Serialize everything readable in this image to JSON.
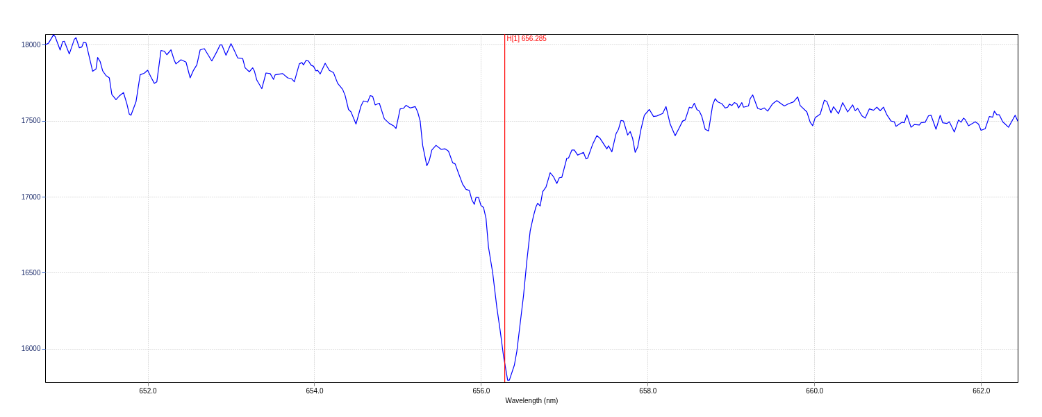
{
  "chart_data": {
    "type": "line",
    "xlabel": "Wavelength (nm)",
    "xlim": [
      650.77,
      662.44
    ],
    "ylim": [
      15780,
      18070
    ],
    "xticks": [
      {
        "value": 652,
        "label": "652.0"
      },
      {
        "value": 654,
        "label": "654.0"
      },
      {
        "value": 656,
        "label": "656.0"
      },
      {
        "value": 658,
        "label": "658.0"
      },
      {
        "value": 660,
        "label": "660.0"
      },
      {
        "value": 662,
        "label": "662.0"
      }
    ],
    "yticks": [
      16000,
      16500,
      17000,
      17500,
      18000
    ],
    "grid": true,
    "line_style": "solid",
    "ref_lines": [
      {
        "axis": "x",
        "value": 656.285,
        "label": "H[1] 656.285",
        "color": "#ff0000"
      }
    ],
    "x": [
      650.77,
      650.81,
      650.87,
      650.89,
      650.95,
      650.98,
      651.0,
      651.06,
      651.12,
      651.14,
      651.18,
      651.21,
      651.23,
      651.26,
      651.34,
      651.38,
      651.4,
      651.43,
      651.46,
      651.5,
      651.54,
      651.57,
      651.62,
      651.66,
      651.71,
      651.75,
      651.78,
      651.8,
      651.86,
      651.91,
      651.96,
      652.0,
      652.04,
      652.08,
      652.11,
      652.16,
      652.2,
      652.23,
      652.28,
      652.32,
      652.34,
      652.4,
      652.46,
      652.51,
      652.55,
      652.59,
      652.63,
      652.68,
      652.77,
      652.83,
      652.87,
      652.89,
      652.94,
      653.0,
      653.04,
      653.08,
      653.14,
      653.17,
      653.22,
      653.26,
      653.28,
      653.31,
      653.37,
      653.42,
      653.47,
      653.51,
      653.53,
      653.62,
      653.68,
      653.73,
      653.76,
      653.82,
      653.85,
      653.87,
      653.9,
      653.93,
      653.96,
      653.99,
      654.02,
      654.04,
      654.07,
      654.13,
      654.18,
      654.23,
      654.28,
      654.34,
      654.37,
      654.41,
      654.44,
      654.5,
      654.56,
      654.59,
      654.64,
      654.67,
      654.7,
      654.73,
      654.78,
      654.84,
      654.9,
      654.95,
      654.98,
      655.03,
      655.07,
      655.1,
      655.15,
      655.21,
      655.24,
      655.27,
      655.3,
      655.35,
      655.38,
      655.41,
      655.46,
      655.52,
      655.57,
      655.61,
      655.66,
      655.69,
      655.73,
      655.78,
      655.82,
      655.86,
      655.89,
      655.92,
      655.94,
      655.97,
      656.0,
      656.03,
      656.06,
      656.09,
      656.14,
      656.19,
      656.23,
      656.27,
      656.32,
      656.34,
      656.4,
      656.43,
      656.47,
      656.51,
      656.55,
      656.59,
      656.63,
      656.66,
      656.68,
      656.71,
      656.74,
      656.78,
      656.83,
      656.87,
      656.91,
      656.94,
      656.97,
      657.03,
      657.05,
      657.09,
      657.12,
      657.16,
      657.23,
      657.26,
      657.28,
      657.34,
      657.39,
      657.43,
      657.51,
      657.53,
      657.57,
      657.62,
      657.65,
      657.68,
      657.71,
      657.76,
      657.79,
      657.82,
      657.85,
      657.88,
      657.92,
      657.96,
      658.02,
      658.07,
      658.11,
      658.18,
      658.22,
      658.27,
      658.33,
      658.37,
      658.42,
      658.45,
      658.5,
      658.53,
      658.56,
      658.59,
      658.62,
      658.65,
      658.69,
      658.73,
      658.78,
      658.81,
      658.84,
      658.89,
      658.93,
      658.96,
      658.98,
      659.01,
      659.04,
      659.07,
      659.09,
      659.13,
      659.15,
      659.21,
      659.23,
      659.26,
      659.32,
      659.36,
      659.4,
      659.44,
      659.5,
      659.55,
      659.64,
      659.69,
      659.75,
      659.8,
      659.83,
      659.91,
      659.95,
      659.98,
      660.01,
      660.07,
      660.12,
      660.15,
      660.2,
      660.23,
      660.29,
      660.34,
      660.4,
      660.46,
      660.49,
      660.52,
      660.57,
      660.61,
      660.66,
      660.71,
      660.75,
      660.79,
      660.83,
      660.87,
      660.92,
      660.96,
      660.98,
      661.05,
      661.08,
      661.11,
      661.16,
      661.2,
      661.26,
      661.28,
      661.33,
      661.37,
      661.4,
      661.46,
      661.51,
      661.54,
      661.59,
      661.62,
      661.68,
      661.73,
      661.76,
      661.79,
      661.81,
      661.85,
      661.93,
      661.97,
      662.0,
      662.05,
      662.1,
      662.14,
      662.16,
      662.19,
      662.22,
      662.26,
      662.29,
      662.33,
      662.41,
      662.44
    ],
    "series": [
      {
        "color": "#0000ff",
        "values": [
          17999,
          18010,
          18065,
          18053,
          17965,
          18020,
          18023,
          17939,
          18035,
          18046,
          17980,
          17985,
          18015,
          18012,
          17825,
          17840,
          17916,
          17889,
          17828,
          17797,
          17782,
          17673,
          17639,
          17663,
          17685,
          17612,
          17543,
          17536,
          17624,
          17802,
          17813,
          17832,
          17787,
          17746,
          17756,
          17962,
          17957,
          17934,
          17966,
          17896,
          17874,
          17901,
          17886,
          17782,
          17832,
          17867,
          17966,
          17974,
          17893,
          17954,
          17999,
          17999,
          17931,
          18007,
          17962,
          17913,
          17909,
          17848,
          17822,
          17848,
          17828,
          17767,
          17711,
          17814,
          17810,
          17772,
          17802,
          17810,
          17782,
          17775,
          17756,
          17874,
          17883,
          17867,
          17896,
          17893,
          17866,
          17858,
          17828,
          17832,
          17807,
          17878,
          17831,
          17816,
          17746,
          17706,
          17665,
          17574,
          17558,
          17478,
          17597,
          17630,
          17622,
          17665,
          17660,
          17604,
          17615,
          17513,
          17482,
          17467,
          17449,
          17578,
          17581,
          17601,
          17584,
          17593,
          17558,
          17498,
          17338,
          17204,
          17239,
          17307,
          17338,
          17312,
          17315,
          17300,
          17224,
          17216,
          17155,
          17082,
          17049,
          17041,
          16980,
          16950,
          16995,
          16995,
          16942,
          16930,
          16858,
          16668,
          16501,
          16272,
          16120,
          15953,
          15793,
          15793,
          15892,
          15983,
          16166,
          16349,
          16577,
          16775,
          16874,
          16934,
          16957,
          16939,
          17033,
          17064,
          17158,
          17132,
          17087,
          17125,
          17128,
          17254,
          17254,
          17307,
          17307,
          17274,
          17292,
          17249,
          17254,
          17345,
          17402,
          17383,
          17315,
          17335,
          17295,
          17414,
          17444,
          17502,
          17498,
          17406,
          17429,
          17383,
          17292,
          17326,
          17444,
          17536,
          17574,
          17528,
          17531,
          17548,
          17593,
          17478,
          17402,
          17444,
          17498,
          17505,
          17589,
          17584,
          17615,
          17574,
          17563,
          17528,
          17444,
          17432,
          17604,
          17645,
          17624,
          17612,
          17584,
          17589,
          17609,
          17600,
          17619,
          17612,
          17584,
          17619,
          17589,
          17597,
          17645,
          17670,
          17581,
          17574,
          17584,
          17563,
          17612,
          17632,
          17597,
          17612,
          17624,
          17657,
          17600,
          17558,
          17490,
          17467,
          17520,
          17543,
          17635,
          17627,
          17551,
          17592,
          17546,
          17619,
          17558,
          17604,
          17566,
          17581,
          17533,
          17517,
          17578,
          17569,
          17589,
          17566,
          17589,
          17539,
          17498,
          17493,
          17463,
          17490,
          17487,
          17539,
          17457,
          17475,
          17472,
          17487,
          17490,
          17533,
          17536,
          17444,
          17536,
          17487,
          17482,
          17493,
          17426,
          17505,
          17490,
          17517,
          17508,
          17467,
          17493,
          17478,
          17437,
          17447,
          17528,
          17523,
          17563,
          17539,
          17539,
          17493,
          17478,
          17457,
          17536,
          17498
        ]
      }
    ]
  }
}
